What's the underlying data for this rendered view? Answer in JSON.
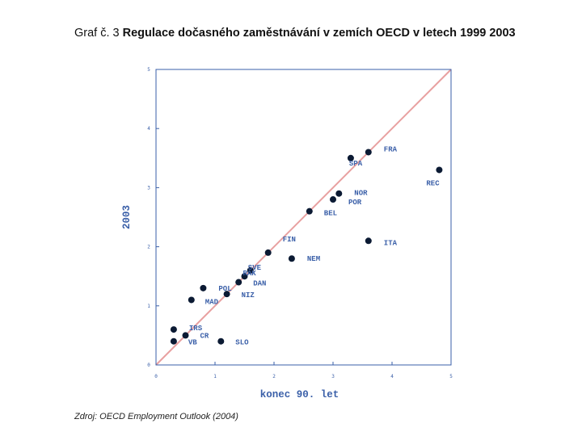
{
  "heading": {
    "prefix": "Graf č. 3",
    "title": "Regulace dočasného zaměstnávání v zemích OECD v letech 1999 2003"
  },
  "source": "Zdroj: OECD Employment Outlook (2004)",
  "colors": {
    "frame": "#3a5fa8",
    "points": "#0b1a33",
    "diagonal": "#e8a0a0",
    "labels": "#3a5fa8"
  },
  "chart_data": {
    "type": "scatter",
    "xlabel": "konec 90. let",
    "ylabel": "2003",
    "xlim": [
      0,
      5
    ],
    "ylim": [
      0,
      5
    ],
    "grid": false,
    "reference_line": "y = x",
    "x_ticks": [
      "0",
      "1",
      "2",
      "3",
      "4",
      "5"
    ],
    "y_ticks": [
      "0",
      "1",
      "2",
      "3",
      "4",
      "5"
    ],
    "points": [
      {
        "x": 3.6,
        "y": 3.6,
        "label": "FRA"
      },
      {
        "x": 3.3,
        "y": 3.5,
        "label": "SPA"
      },
      {
        "x": 4.8,
        "y": 3.3,
        "label": "REC"
      },
      {
        "x": 3.1,
        "y": 2.9,
        "label": "NOR"
      },
      {
        "x": 3.0,
        "y": 2.8,
        "label": "POR"
      },
      {
        "x": 2.6,
        "y": 2.6,
        "label": "BEL"
      },
      {
        "x": 3.6,
        "y": 2.1,
        "label": "ITA"
      },
      {
        "x": 1.9,
        "y": 1.9,
        "label": "FIN"
      },
      {
        "x": 2.3,
        "y": 1.8,
        "label": "NEM"
      },
      {
        "x": 1.6,
        "y": 1.6,
        "label": "SVE"
      },
      {
        "x": 1.5,
        "y": 1.5,
        "label": "RAK"
      },
      {
        "x": 1.4,
        "y": 1.4,
        "label": "DAN"
      },
      {
        "x": 0.8,
        "y": 1.3,
        "label": "POL"
      },
      {
        "x": 1.2,
        "y": 1.2,
        "label": "NIZ"
      },
      {
        "x": 0.6,
        "y": 1.1,
        "label": "MAD"
      },
      {
        "x": 0.3,
        "y": 0.6,
        "label": "IRS"
      },
      {
        "x": 0.5,
        "y": 0.5,
        "label": "CR"
      },
      {
        "x": 0.3,
        "y": 0.4,
        "label": "VB"
      },
      {
        "x": 1.1,
        "y": 0.4,
        "label": "SLO"
      }
    ]
  }
}
